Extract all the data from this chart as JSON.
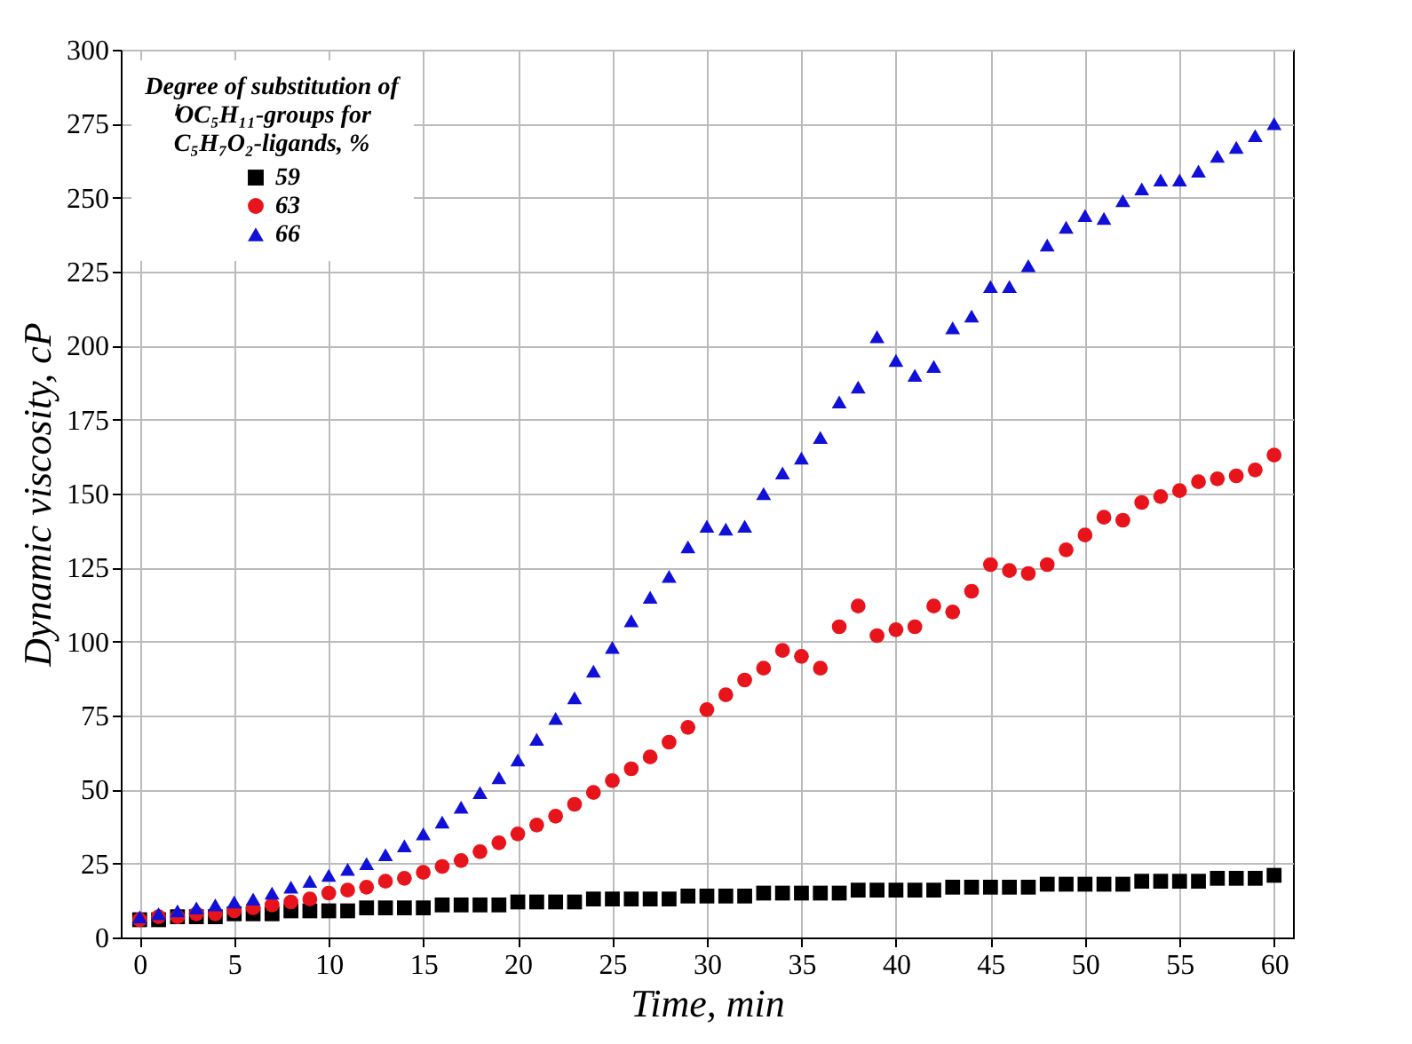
{
  "chart_data": {
    "type": "scatter",
    "xlabel": "Time, min",
    "ylabel": "Dynamic viscosity, cP",
    "legend_title": "Degree of substitution of ⁱOC₅H₁₁-groups for C₅H₇O₂-ligands, %",
    "x": [
      0,
      1,
      2,
      3,
      4,
      5,
      6,
      7,
      8,
      9,
      10,
      11,
      12,
      13,
      14,
      15,
      16,
      17,
      18,
      19,
      20,
      21,
      22,
      23,
      24,
      25,
      26,
      27,
      28,
      29,
      30,
      31,
      32,
      33,
      34,
      35,
      36,
      37,
      38,
      39,
      40,
      41,
      42,
      43,
      44,
      45,
      46,
      47,
      48,
      49,
      50,
      51,
      52,
      53,
      54,
      55,
      56,
      57,
      58,
      59,
      60
    ],
    "series": [
      {
        "name": "59",
        "color": "#000000",
        "marker": "square",
        "values": [
          6,
          6,
          7,
          7,
          7,
          8,
          8,
          8,
          9,
          9,
          9,
          9,
          10,
          10,
          10,
          10,
          11,
          11,
          11,
          11,
          12,
          12,
          12,
          12,
          13,
          13,
          13,
          13,
          13,
          14,
          14,
          14,
          14,
          15,
          15,
          15,
          15,
          15,
          16,
          16,
          16,
          16,
          16,
          17,
          17,
          17,
          17,
          17,
          18,
          18,
          18,
          18,
          18,
          19,
          19,
          19,
          19,
          20,
          20,
          20,
          21
        ]
      },
      {
        "name": "63",
        "color": "#e8141b",
        "marker": "circle",
        "values": [
          6,
          7,
          7,
          8,
          8,
          9,
          10,
          11,
          12,
          13,
          15,
          16,
          17,
          19,
          20,
          22,
          24,
          26,
          29,
          32,
          35,
          38,
          41,
          45,
          49,
          53,
          57,
          61,
          66,
          71,
          77,
          82,
          87,
          91,
          97,
          95,
          91,
          105,
          112,
          102,
          104,
          105,
          112,
          110,
          117,
          126,
          124,
          123,
          126,
          131,
          136,
          142,
          141,
          147,
          149,
          151,
          154,
          155,
          156,
          158,
          163
        ]
      },
      {
        "name": "66",
        "color": "#1010d8",
        "marker": "triangle",
        "values": [
          7,
          8,
          9,
          10,
          11,
          12,
          13,
          15,
          17,
          19,
          21,
          23,
          25,
          28,
          31,
          35,
          39,
          44,
          49,
          54,
          60,
          67,
          74,
          81,
          90,
          98,
          107,
          115,
          122,
          132,
          139,
          138,
          139,
          150,
          157,
          162,
          169,
          181,
          186,
          203,
          195,
          190,
          193,
          206,
          210,
          220,
          220,
          227,
          234,
          240,
          244,
          243,
          249,
          253,
          256,
          256,
          259,
          264,
          267,
          271,
          275
        ]
      }
    ],
    "xlim": [
      -1,
      61
    ],
    "xticks": [
      0,
      5,
      10,
      15,
      20,
      25,
      30,
      35,
      40,
      45,
      50,
      55,
      60
    ],
    "ylim": [
      0,
      300
    ],
    "yticks": [
      0,
      25,
      50,
      75,
      100,
      125,
      150,
      175,
      200,
      225,
      250,
      275,
      300
    ],
    "grid": true,
    "legend": "top left"
  }
}
